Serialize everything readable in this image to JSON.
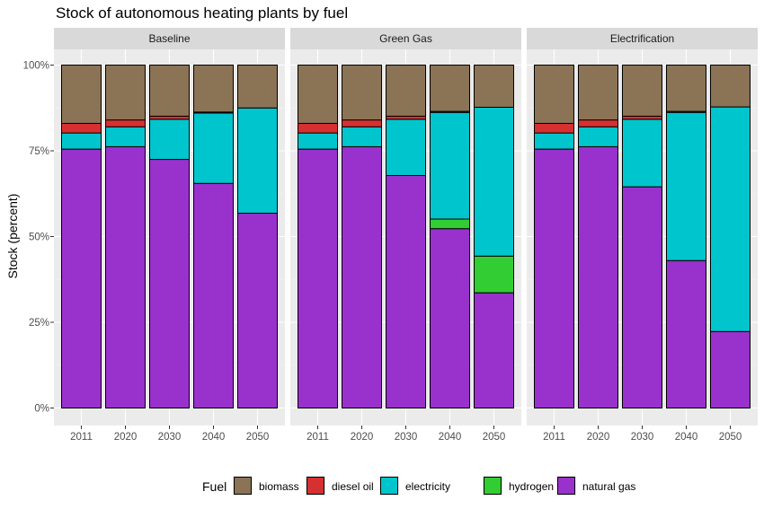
{
  "chart_data": {
    "type": "bar",
    "stacked": true,
    "title": "Stock of autonomous heating plants by fuel",
    "xlabel": "",
    "ylabel": "Stock (percent)",
    "ylim": [
      0,
      100
    ],
    "y_ticks": [
      "0%",
      "25%",
      "50%",
      "75%",
      "100%"
    ],
    "y_tick_values": [
      0,
      25,
      50,
      75,
      100
    ],
    "categories": [
      "2011",
      "2020",
      "2030",
      "2040",
      "2050"
    ],
    "legend": {
      "title": "Fuel",
      "placement": "bottom",
      "entries": [
        "biomass",
        "diesel oil",
        "electricity",
        "hydrogen",
        "natural gas"
      ]
    },
    "colors": {
      "biomass": "#8B7355",
      "diesel oil": "#D73030",
      "electricity": "#00C5CD",
      "hydrogen": "#32CD32",
      "natural gas": "#9932CC"
    },
    "stack_order_bottom_to_top": [
      "natural gas",
      "hydrogen",
      "electricity",
      "diesel oil",
      "biomass"
    ],
    "grid": true,
    "panels": [
      {
        "name": "Baseline",
        "series": [
          {
            "name": "natural gas",
            "values": [
              75.5,
              76.2,
              72.5,
              65.5,
              56.8
            ]
          },
          {
            "name": "hydrogen",
            "values": [
              0,
              0,
              0,
              0,
              0
            ]
          },
          {
            "name": "electricity",
            "values": [
              4.7,
              5.8,
              11.7,
              20.5,
              30.7
            ]
          },
          {
            "name": "diesel oil",
            "values": [
              2.8,
              2.0,
              0.9,
              0.3,
              0
            ]
          },
          {
            "name": "biomass",
            "values": [
              17.0,
              16.0,
              14.9,
              13.7,
              12.5
            ]
          }
        ]
      },
      {
        "name": "Green Gas",
        "series": [
          {
            "name": "natural gas",
            "values": [
              75.5,
              76.2,
              67.8,
              52.3,
              33.6
            ]
          },
          {
            "name": "hydrogen",
            "values": [
              0,
              0,
              0,
              2.8,
              10.7
            ]
          },
          {
            "name": "electricity",
            "values": [
              4.7,
              5.8,
              16.4,
              31.1,
              43.4
            ]
          },
          {
            "name": "diesel oil",
            "values": [
              2.8,
              2.0,
              0.9,
              0.3,
              0
            ]
          },
          {
            "name": "biomass",
            "values": [
              17.0,
              16.0,
              14.9,
              13.5,
              12.3
            ]
          }
        ]
      },
      {
        "name": "Electrification",
        "series": [
          {
            "name": "natural gas",
            "values": [
              75.5,
              76.2,
              64.5,
              43.0,
              22.3
            ]
          },
          {
            "name": "hydrogen",
            "values": [
              0,
              0,
              0,
              0,
              0
            ]
          },
          {
            "name": "electricity",
            "values": [
              4.7,
              5.8,
              19.7,
              43.2,
              65.5
            ]
          },
          {
            "name": "diesel oil",
            "values": [
              2.8,
              2.0,
              0.9,
              0.3,
              0
            ]
          },
          {
            "name": "biomass",
            "values": [
              17.0,
              16.0,
              14.9,
              13.5,
              12.2
            ]
          }
        ]
      }
    ]
  }
}
